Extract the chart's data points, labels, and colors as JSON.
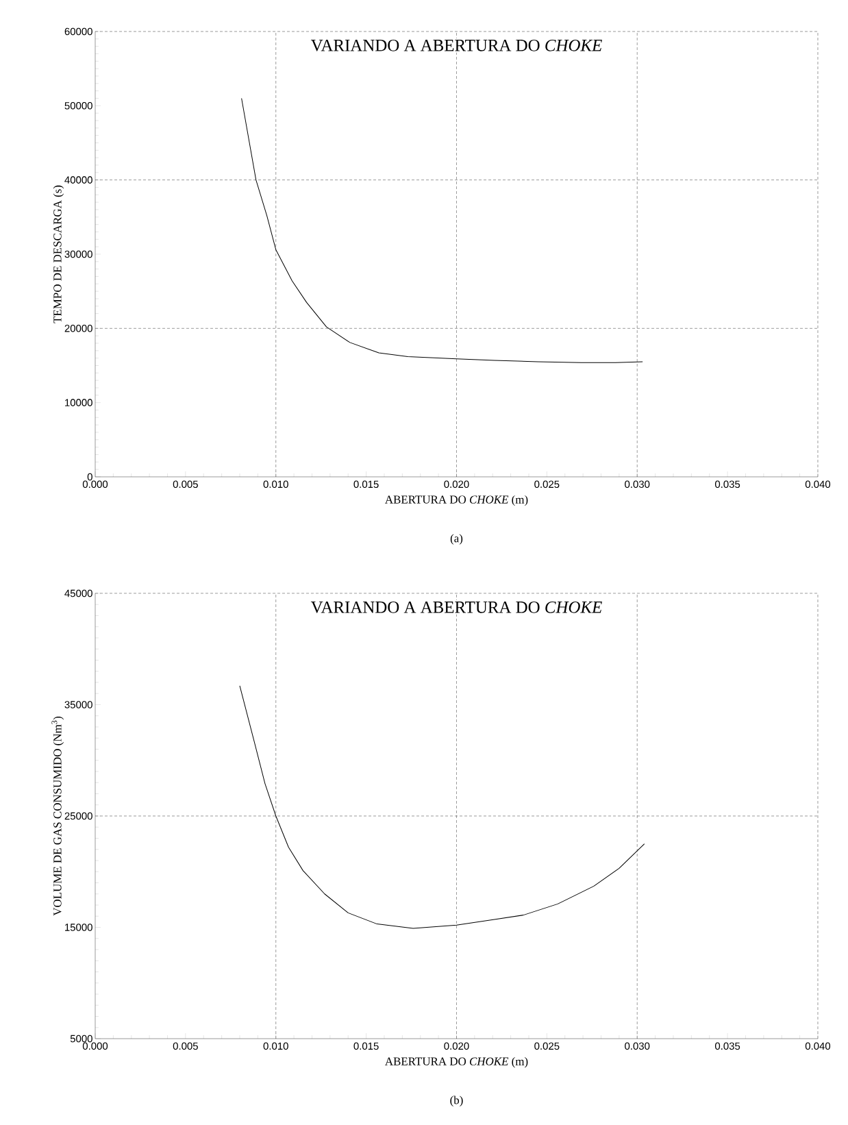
{
  "chart_data": [
    {
      "type": "line",
      "title": "VARIANDO A ABERTURA DO *CHOKE*",
      "xlabel": "ABERTURA DO *CHOKE* (m)",
      "ylabel": "TEMPO DE DESCARGA (s)",
      "annotations": [
        "(a)"
      ],
      "x": [
        0.0081,
        0.0089,
        0.0095,
        0.01,
        0.0109,
        0.0117,
        0.0128,
        0.0141,
        0.0157,
        0.0173,
        0.02,
        0.0221,
        0.0245,
        0.0269,
        0.0288,
        0.0303
      ],
      "values": [
        51000,
        40000,
        35200,
        30600,
        26400,
        23500,
        20200,
        18100,
        16700,
        16200,
        15900,
        15700,
        15500,
        15400,
        15400,
        15500
      ],
      "color": "#000000",
      "line_style": "solid",
      "xlim": [
        0,
        0.04
      ],
      "ylim": [
        0,
        60000
      ],
      "xticks": [
        {
          "value": 0,
          "label": "0.000"
        },
        {
          "value": 0.005,
          "label": "0.005"
        },
        {
          "value": 0.01,
          "label": "0.010"
        },
        {
          "value": 0.015,
          "label": "0.015"
        },
        {
          "value": 0.02,
          "label": "0.020"
        },
        {
          "value": 0.025,
          "label": "0.025"
        },
        {
          "value": 0.03,
          "label": "0.030"
        },
        {
          "value": 0.035,
          "label": "0.035"
        },
        {
          "value": 0.04,
          "label": "0.040"
        }
      ],
      "yticks": [
        0,
        10000,
        20000,
        30000,
        40000,
        50000,
        60000
      ],
      "ref_lines": [
        {
          "axis": "x",
          "value": 0.01,
          "line_style": "dashed"
        },
        {
          "axis": "x",
          "value": 0.02,
          "line_style": "dashed"
        },
        {
          "axis": "x",
          "value": 0.03,
          "line_style": "dashed"
        },
        {
          "axis": "y",
          "value": 20000,
          "line_style": "dashed"
        },
        {
          "axis": "y",
          "value": 40000,
          "line_style": "dashed"
        }
      ]
    },
    {
      "type": "line",
      "title": "VARIANDO A ABERTURA DO *CHOKE*",
      "xlabel": "ABERTURA DO *CHOKE* (m)",
      "ylabel": "VOLUME DE GAS CONSUMIDO (Nm$^{3}$)",
      "annotations": [
        "(b)"
      ],
      "x": [
        0.008,
        0.0088,
        0.0094,
        0.01,
        0.0107,
        0.0115,
        0.0127,
        0.014,
        0.0156,
        0.0176,
        0.02,
        0.0221,
        0.0237,
        0.0256,
        0.0276,
        0.029,
        0.0304
      ],
      "values": [
        36700,
        31700,
        27900,
        25000,
        22200,
        20100,
        18000,
        16300,
        15300,
        14900,
        15200,
        15700,
        16100,
        17100,
        18700,
        20300,
        22500
      ],
      "color": "#000000",
      "line_style": "solid",
      "xlim": [
        0,
        0.04
      ],
      "ylim": [
        5000,
        45000
      ],
      "xticks": [
        {
          "value": 0,
          "label": "0.000"
        },
        {
          "value": 0.005,
          "label": "0.005"
        },
        {
          "value": 0.01,
          "label": "0.010"
        },
        {
          "value": 0.015,
          "label": "0.015"
        },
        {
          "value": 0.02,
          "label": "0.020"
        },
        {
          "value": 0.025,
          "label": "0.025"
        },
        {
          "value": 0.03,
          "label": "0.030"
        },
        {
          "value": 0.035,
          "label": "0.035"
        },
        {
          "value": 0.04,
          "label": "0.040"
        }
      ],
      "yticks": [
        5000,
        15000,
        25000,
        35000,
        45000
      ],
      "ref_lines": [
        {
          "axis": "x",
          "value": 0.01,
          "line_style": "dashed"
        },
        {
          "axis": "x",
          "value": 0.02,
          "line_style": "dashed"
        },
        {
          "axis": "x",
          "value": 0.03,
          "line_style": "dashed"
        },
        {
          "axis": "y",
          "value": 25000,
          "line_style": "dashed"
        }
      ]
    }
  ]
}
